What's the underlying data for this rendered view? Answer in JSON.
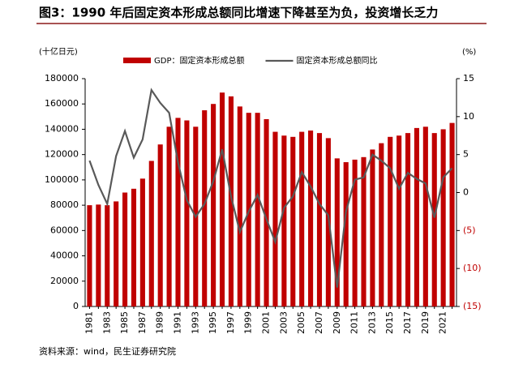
{
  "chart_data": {
    "type": "bar_line",
    "title": "图3：1990 年后固定资本形成总额同比增速下降甚至为负，投资增长乏力",
    "y_label": "(十亿日元)",
    "y2_label": "(%)",
    "source": "资料来源：wind，民生证券研究院",
    "categories": [
      "1981",
      null,
      "1983",
      null,
      "1985",
      null,
      "1987",
      null,
      "1989",
      null,
      "1991",
      null,
      "1993",
      null,
      "1995",
      null,
      "1997",
      null,
      "1999",
      null,
      "2001",
      null,
      "2003",
      null,
      "2005",
      null,
      "2007",
      null,
      "2009",
      null,
      "2011",
      null,
      "2013",
      null,
      "2015",
      null,
      "2017",
      null,
      "2019",
      null,
      "2021",
      null
    ],
    "series": [
      {
        "name": "GDP：固定资本形成总额",
        "type": "bar",
        "color": "#c00000",
        "values": [
          80000,
          80500,
          80000,
          83000,
          90000,
          93000,
          101000,
          115000,
          128000,
          142000,
          149000,
          147000,
          142000,
          155000,
          160000,
          169000,
          166000,
          158000,
          153000,
          153000,
          148000,
          138000,
          135000,
          134000,
          138000,
          139000,
          137000,
          133000,
          117000,
          114000,
          116000,
          118000,
          124000,
          129000,
          134000,
          135000,
          137000,
          141000,
          142000,
          137000,
          140000,
          145000
        ]
      },
      {
        "name": "固定资本形成总额同比",
        "type": "line",
        "axis": "y2",
        "color": "#595959",
        "values": [
          4.2,
          1.0,
          -1.5,
          4.8,
          8.1,
          4.6,
          7.0,
          13.5,
          11.8,
          10.5,
          4.0,
          -1.0,
          -3.2,
          -1.5,
          1.5,
          5.7,
          -0.5,
          -5.2,
          -2.5,
          -0.3,
          -3.5,
          -6.5,
          -2.0,
          -0.5,
          2.7,
          0.8,
          -1.5,
          -3.0,
          -12.5,
          -2.5,
          1.7,
          2.0,
          5.0,
          4.2,
          3.2,
          0.5,
          2.6,
          1.8,
          1.2,
          -3.3,
          2.0,
          3.2
        ]
      }
    ],
    "ylim": [
      0,
      180000
    ],
    "yticks": [
      0,
      20000,
      40000,
      60000,
      80000,
      100000,
      120000,
      140000,
      160000,
      180000
    ],
    "y2lim": [
      -15,
      15
    ],
    "y2ticks": [
      {
        "value": -15,
        "label": "(15)"
      },
      {
        "value": -10,
        "label": "(10)"
      },
      {
        "value": -5,
        "label": "(5)"
      },
      0,
      5,
      10,
      15
    ],
    "y2_negative_color": "#c00000"
  }
}
